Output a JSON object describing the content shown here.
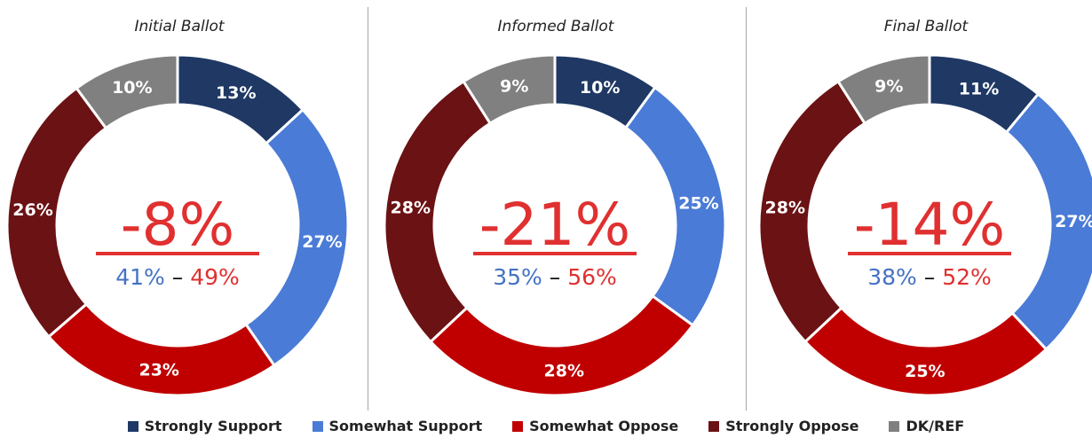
{
  "colors": {
    "strongly_support": "#1f3864",
    "somewhat_support": "#4a7bd6",
    "somewhat_oppose": "#c00000",
    "strongly_oppose": "#6b1214",
    "dk_ref": "#808080",
    "net": "#e03030",
    "support_text": "#4472c4",
    "dash": "#111111"
  },
  "legend": [
    {
      "label": "Strongly Support",
      "color": "#1f3864"
    },
    {
      "label": "Somewhat Support",
      "color": "#4a7bd6"
    },
    {
      "label": "Somewhat Oppose",
      "color": "#c00000"
    },
    {
      "label": "Strongly Oppose",
      "color": "#6b1214"
    },
    {
      "label": "DK/REF",
      "color": "#808080"
    }
  ],
  "chart_data": [
    {
      "type": "pie",
      "title": "Initial Ballot",
      "categories": [
        "Strongly Support",
        "Somewhat Support",
        "Somewhat Oppose",
        "Strongly Oppose",
        "DK/REF"
      ],
      "values": [
        13,
        27,
        23,
        26,
        10
      ],
      "labels": [
        "13%",
        "27%",
        "23%",
        "26%",
        "10%"
      ],
      "net": "-8%",
      "support": "41%",
      "oppose": "49%",
      "dash": "–"
    },
    {
      "type": "pie",
      "title": "Informed Ballot",
      "categories": [
        "Strongly Support",
        "Somewhat Support",
        "Somewhat Oppose",
        "Strongly Oppose",
        "DK/REF"
      ],
      "values": [
        10,
        25,
        28,
        28,
        9
      ],
      "labels": [
        "10%",
        "25%",
        "28%",
        "28%",
        "9%"
      ],
      "net": "-21%",
      "support": "35%",
      "oppose": "56%",
      "dash": "–"
    },
    {
      "type": "pie",
      "title": "Final Ballot",
      "categories": [
        "Strongly Support",
        "Somewhat Support",
        "Somewhat Oppose",
        "Strongly Oppose",
        "DK/REF"
      ],
      "values": [
        11,
        27,
        25,
        28,
        9
      ],
      "labels": [
        "11%",
        "27%",
        "25%",
        "28%",
        "9%"
      ],
      "net": "-14%",
      "support": "38%",
      "oppose": "52%",
      "dash": "–"
    }
  ]
}
